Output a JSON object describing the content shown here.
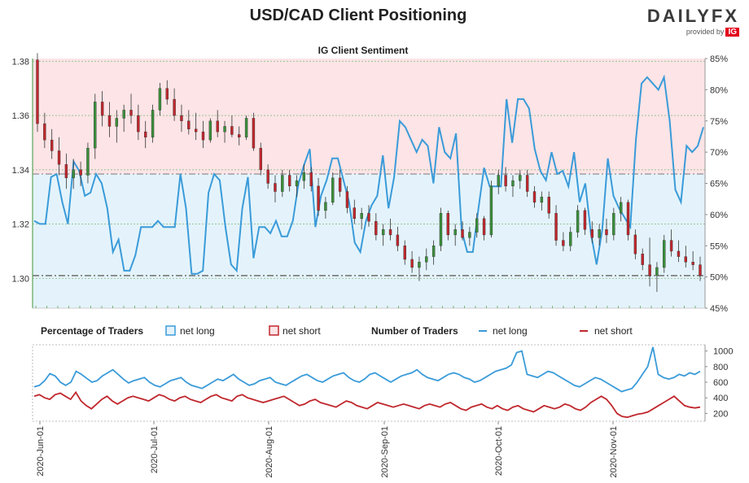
{
  "header": {
    "title": "USD/CAD Client Positioning",
    "logo_text": "DAILYFX",
    "provided_by": "provided by",
    "provider": "IG"
  },
  "chart_data": [
    {
      "type": "candlestick+line",
      "title": "IG Client Sentiment",
      "y_left": {
        "ticks": [
          "1.30",
          "1.32",
          "1.34",
          "1.36",
          "1.38"
        ],
        "range": [
          1.289,
          1.381
        ]
      },
      "y_right": {
        "ticks": [
          "45%",
          "50%",
          "55%",
          "60%",
          "65%",
          "70%",
          "75%",
          "80%",
          "85%"
        ],
        "range": [
          45,
          85
        ]
      },
      "reference_lines": {
        "current_price": 1.301,
        "current_long_pct": 66.5
      },
      "colors": {
        "up": "#3a8f3a",
        "down": "#c0272d",
        "net_long": "#3a9bd9",
        "long_fill": "#e4f3fb",
        "short_fill": "#fde4e6"
      },
      "candles": [
        [
          1.3805,
          1.383,
          1.354,
          1.357
        ],
        [
          1.357,
          1.361,
          1.348,
          1.351
        ],
        [
          1.351,
          1.355,
          1.344,
          1.347
        ],
        [
          1.347,
          1.352,
          1.338,
          1.342
        ],
        [
          1.342,
          1.346,
          1.333,
          1.337
        ],
        [
          1.337,
          1.344,
          1.333,
          1.34
        ],
        [
          1.34,
          1.343,
          1.334,
          1.338
        ],
        [
          1.338,
          1.35,
          1.335,
          1.348
        ],
        [
          1.348,
          1.368,
          1.344,
          1.365
        ],
        [
          1.365,
          1.369,
          1.356,
          1.36
        ],
        [
          1.36,
          1.365,
          1.352,
          1.356
        ],
        [
          1.356,
          1.362,
          1.35,
          1.359
        ],
        [
          1.359,
          1.364,
          1.354,
          1.362
        ],
        [
          1.362,
          1.368,
          1.357,
          1.36
        ],
        [
          1.36,
          1.364,
          1.351,
          1.354
        ],
        [
          1.354,
          1.358,
          1.348,
          1.352
        ],
        [
          1.352,
          1.364,
          1.35,
          1.362
        ],
        [
          1.362,
          1.372,
          1.36,
          1.37
        ],
        [
          1.37,
          1.373,
          1.364,
          1.366
        ],
        [
          1.366,
          1.37,
          1.358,
          1.36
        ],
        [
          1.36,
          1.364,
          1.354,
          1.358
        ],
        [
          1.358,
          1.362,
          1.353,
          1.355
        ],
        [
          1.355,
          1.361,
          1.351,
          1.354
        ],
        [
          1.354,
          1.358,
          1.348,
          1.351
        ],
        [
          1.351,
          1.359,
          1.35,
          1.358
        ],
        [
          1.358,
          1.362,
          1.352,
          1.354
        ],
        [
          1.354,
          1.358,
          1.35,
          1.356
        ],
        [
          1.356,
          1.36,
          1.352,
          1.353
        ],
        [
          1.353,
          1.356,
          1.349,
          1.352
        ],
        [
          1.352,
          1.36,
          1.351,
          1.359
        ],
        [
          1.359,
          1.361,
          1.347,
          1.348
        ],
        [
          1.348,
          1.35,
          1.338,
          1.34
        ],
        [
          1.34,
          1.342,
          1.333,
          1.335
        ],
        [
          1.335,
          1.338,
          1.328,
          1.332
        ],
        [
          1.332,
          1.34,
          1.33,
          1.338
        ],
        [
          1.338,
          1.34,
          1.332,
          1.334
        ],
        [
          1.334,
          1.338,
          1.33,
          1.336
        ],
        [
          1.336,
          1.342,
          1.333,
          1.339
        ],
        [
          1.339,
          1.341,
          1.332,
          1.334
        ],
        [
          1.334,
          1.337,
          1.323,
          1.325
        ],
        [
          1.325,
          1.33,
          1.322,
          1.328
        ],
        [
          1.328,
          1.339,
          1.327,
          1.337
        ],
        [
          1.337,
          1.34,
          1.33,
          1.332
        ],
        [
          1.332,
          1.334,
          1.324,
          1.326
        ],
        [
          1.326,
          1.329,
          1.32,
          1.322
        ],
        [
          1.322,
          1.326,
          1.318,
          1.324
        ],
        [
          1.324,
          1.327,
          1.319,
          1.321
        ],
        [
          1.321,
          1.324,
          1.314,
          1.316
        ],
        [
          1.316,
          1.32,
          1.312,
          1.318
        ],
        [
          1.318,
          1.322,
          1.314,
          1.316
        ],
        [
          1.316,
          1.319,
          1.31,
          1.312
        ],
        [
          1.312,
          1.314,
          1.305,
          1.307
        ],
        [
          1.307,
          1.31,
          1.302,
          1.304
        ],
        [
          1.304,
          1.308,
          1.299,
          1.306
        ],
        [
          1.306,
          1.311,
          1.303,
          1.308
        ],
        [
          1.308,
          1.314,
          1.305,
          1.312
        ],
        [
          1.312,
          1.326,
          1.31,
          1.324
        ],
        [
          1.324,
          1.325,
          1.314,
          1.316
        ],
        [
          1.316,
          1.32,
          1.312,
          1.318
        ],
        [
          1.318,
          1.321,
          1.314,
          1.315
        ],
        [
          1.315,
          1.319,
          1.312,
          1.317
        ],
        [
          1.317,
          1.324,
          1.315,
          1.322
        ],
        [
          1.322,
          1.323,
          1.314,
          1.316
        ],
        [
          1.316,
          1.336,
          1.315,
          1.334
        ],
        [
          1.334,
          1.34,
          1.331,
          1.338
        ],
        [
          1.338,
          1.341,
          1.332,
          1.334
        ],
        [
          1.334,
          1.338,
          1.33,
          1.336
        ],
        [
          1.336,
          1.34,
          1.333,
          1.338
        ],
        [
          1.338,
          1.34,
          1.33,
          1.332
        ],
        [
          1.332,
          1.334,
          1.326,
          1.328
        ],
        [
          1.328,
          1.332,
          1.325,
          1.33
        ],
        [
          1.33,
          1.332,
          1.322,
          1.324
        ],
        [
          1.324,
          1.327,
          1.312,
          1.314
        ],
        [
          1.314,
          1.317,
          1.31,
          1.312
        ],
        [
          1.312,
          1.319,
          1.31,
          1.317
        ],
        [
          1.317,
          1.327,
          1.315,
          1.325
        ],
        [
          1.325,
          1.326,
          1.316,
          1.318
        ],
        [
          1.318,
          1.321,
          1.313,
          1.315
        ],
        [
          1.315,
          1.32,
          1.312,
          1.318
        ],
        [
          1.318,
          1.322,
          1.313,
          1.316
        ],
        [
          1.316,
          1.326,
          1.314,
          1.324
        ],
        [
          1.324,
          1.33,
          1.321,
          1.328
        ],
        [
          1.328,
          1.329,
          1.314,
          1.316
        ],
        [
          1.316,
          1.318,
          1.307,
          1.309
        ],
        [
          1.309,
          1.311,
          1.303,
          1.305
        ],
        [
          1.305,
          1.315,
          1.297,
          1.301
        ],
        [
          1.301,
          1.306,
          1.295,
          1.304
        ],
        [
          1.304,
          1.316,
          1.302,
          1.314
        ],
        [
          1.314,
          1.318,
          1.308,
          1.31
        ],
        [
          1.31,
          1.314,
          1.306,
          1.308
        ],
        [
          1.308,
          1.312,
          1.304,
          1.306
        ],
        [
          1.306,
          1.31,
          1.303,
          1.305
        ],
        [
          1.305,
          1.308,
          1.299,
          1.301
        ]
      ],
      "net_long_pct": [
        59,
        58.5,
        58.5,
        66,
        66.5,
        62,
        58.5,
        68.5,
        67,
        63,
        63.5,
        66.5,
        65,
        61,
        54,
        56,
        51,
        51,
        53.5,
        58,
        58,
        58,
        59,
        58,
        58,
        58,
        66.5,
        61,
        50.5,
        50.5,
        51,
        63.5,
        66.5,
        65.5,
        58,
        52,
        51,
        61,
        66,
        53,
        58,
        58,
        57,
        59,
        56.5,
        56.5,
        59,
        65,
        68,
        70.5,
        58,
        63,
        65.5,
        69,
        69,
        65.5,
        62,
        55.5,
        54,
        59,
        61.5,
        63,
        69.5,
        61,
        66,
        75,
        74,
        72,
        70,
        72,
        71,
        65,
        74,
        70,
        69,
        73,
        57.5,
        54,
        54,
        61,
        67.5,
        64.5,
        64.5,
        64.5,
        78.5,
        71.5,
        78.5,
        78.5,
        77,
        70.5,
        67,
        65.5,
        70,
        66.5,
        67,
        64.5,
        70,
        62,
        65,
        57,
        52,
        57.5,
        69,
        63,
        61,
        59.5,
        58,
        72,
        81,
        82,
        81,
        80,
        82,
        75,
        64,
        62,
        71,
        70,
        71,
        74
      ]
    },
    {
      "type": "line",
      "title": "Number of Traders",
      "y_right": {
        "ticks": [
          "200",
          "400",
          "600",
          "800",
          "1000"
        ],
        "range": [
          100,
          1080
        ]
      },
      "legend": {
        "pct_title": "Percentage of Traders",
        "pct_long": "net long",
        "pct_short": "net short",
        "num_title": "Number of Traders",
        "num_long": "net long",
        "num_short": "net short"
      },
      "series": [
        {
          "name": "net long",
          "color": "#3a9bd9",
          "values": [
            540,
            560,
            620,
            710,
            680,
            600,
            560,
            600,
            740,
            700,
            650,
            600,
            620,
            680,
            720,
            760,
            700,
            640,
            590,
            620,
            640,
            660,
            600,
            560,
            540,
            580,
            620,
            640,
            660,
            600,
            560,
            540,
            520,
            560,
            600,
            640,
            620,
            660,
            700,
            640,
            600,
            560,
            580,
            620,
            640,
            660,
            600,
            580,
            560,
            600,
            640,
            680,
            700,
            660,
            620,
            600,
            640,
            680,
            700,
            720,
            660,
            620,
            600,
            640,
            700,
            720,
            680,
            640,
            600,
            640,
            680,
            700,
            720,
            760,
            700,
            660,
            640,
            620,
            660,
            700,
            720,
            700,
            660,
            640,
            600,
            620,
            660,
            700,
            740,
            760,
            780,
            820,
            980,
            1000,
            700,
            680,
            660,
            700,
            740,
            720,
            680,
            640,
            600,
            560,
            540,
            580,
            620,
            660,
            640,
            600,
            560,
            520,
            480,
            500,
            520,
            600,
            700,
            800,
            1050,
            700,
            660,
            640,
            660,
            700,
            680,
            720,
            700,
            740
          ]
        },
        {
          "name": "net short",
          "color": "#c0272d",
          "values": [
            420,
            440,
            400,
            380,
            440,
            460,
            420,
            380,
            470,
            360,
            300,
            260,
            320,
            380,
            420,
            360,
            320,
            360,
            400,
            420,
            400,
            380,
            360,
            400,
            440,
            420,
            380,
            360,
            400,
            420,
            380,
            360,
            340,
            380,
            420,
            440,
            400,
            380,
            360,
            420,
            440,
            400,
            380,
            360,
            340,
            360,
            380,
            400,
            420,
            380,
            340,
            300,
            320,
            360,
            380,
            340,
            320,
            300,
            280,
            320,
            360,
            340,
            300,
            280,
            260,
            300,
            340,
            320,
            300,
            280,
            300,
            320,
            300,
            280,
            260,
            300,
            320,
            300,
            280,
            320,
            340,
            300,
            260,
            240,
            280,
            300,
            320,
            280,
            260,
            300,
            260,
            240,
            280,
            300,
            260,
            240,
            220,
            260,
            300,
            280,
            260,
            280,
            320,
            300,
            260,
            240,
            280,
            340,
            380,
            420,
            380,
            300,
            200,
            160,
            150,
            170,
            190,
            200,
            220,
            260,
            300,
            340,
            380,
            420,
            360,
            300,
            280,
            270,
            280
          ]
        }
      ]
    }
  ],
  "x_axis": {
    "labels": [
      "2020-Jun-01",
      "2020-Jul-01",
      "2020-Aug-01",
      "2020-Sep-01",
      "2020-Oct-01",
      "2020-Nov-01"
    ]
  }
}
